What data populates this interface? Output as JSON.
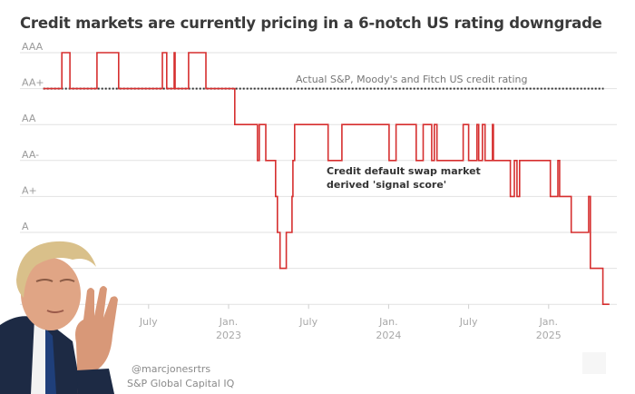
{
  "title": "Credit markets are currently pricing in a 6-notch US rating downgrade",
  "chart_data": {
    "type": "line",
    "step": true,
    "title": "Credit markets are currently pricing in a 6-notch US rating downgrade",
    "y_levels": [
      "AAA",
      "AA+",
      "AA",
      "AA-",
      "A+",
      "A",
      "",
      ""
    ],
    "y_tick_labels": [
      "AAA",
      "AA+",
      "AA",
      "AA-",
      "A+",
      "A"
    ],
    "x_ticks": [
      {
        "date": "2022-07-01",
        "label": "July",
        "sub": ""
      },
      {
        "date": "2023-01-01",
        "label": "Jan.",
        "sub": "2023"
      },
      {
        "date": "2023-07-01",
        "label": "July",
        "sub": ""
      },
      {
        "date": "2024-01-01",
        "label": "Jan.",
        "sub": "2024"
      },
      {
        "date": "2024-07-01",
        "label": "July",
        "sub": ""
      },
      {
        "date": "2025-01-01",
        "label": "Jan.",
        "sub": "2025"
      }
    ],
    "grid": true,
    "series": [
      {
        "name": "Credit default swap market derived 'signal score'",
        "color": "#d62f2f",
        "style": "solid",
        "steps": [
          [
            "2021-11-04",
            "AA+"
          ],
          [
            "2021-12-16",
            "AAA"
          ],
          [
            "2022-01-04",
            "AA+"
          ],
          [
            "2022-03-05",
            "AAA"
          ],
          [
            "2022-04-24",
            "AA+"
          ],
          [
            "2022-08-02",
            "AAA"
          ],
          [
            "2022-08-12",
            "AA+"
          ],
          [
            "2022-08-29",
            "AAA"
          ],
          [
            "2022-08-31",
            "AA+"
          ],
          [
            "2022-10-01",
            "AAA"
          ],
          [
            "2022-11-10",
            "AA+"
          ],
          [
            "2023-01-15",
            "AA"
          ],
          [
            "2023-03-06",
            "AA-"
          ],
          [
            "2023-03-10",
            "AA"
          ],
          [
            "2023-03-25",
            "AA-"
          ],
          [
            "2023-04-17",
            "A+"
          ],
          [
            "2023-04-21",
            "A"
          ],
          [
            "2023-04-27",
            "A-"
          ],
          [
            "2023-05-11",
            "A"
          ],
          [
            "2023-05-24",
            "A+"
          ],
          [
            "2023-05-26",
            "AA-"
          ],
          [
            "2023-05-30",
            "AA"
          ],
          [
            "2023-08-15",
            "AA-"
          ],
          [
            "2023-09-16",
            "AA"
          ],
          [
            "2024-01-02",
            "AA-"
          ],
          [
            "2024-01-18",
            "AA"
          ],
          [
            "2024-03-03",
            "AA-"
          ],
          [
            "2024-03-19",
            "AA"
          ],
          [
            "2024-04-08",
            "AA-"
          ],
          [
            "2024-04-14",
            "AA"
          ],
          [
            "2024-04-20",
            "AA-"
          ],
          [
            "2024-06-19",
            "AA"
          ],
          [
            "2024-07-01",
            "AA-"
          ],
          [
            "2024-07-20",
            "AA"
          ],
          [
            "2024-07-24",
            "AA-"
          ],
          [
            "2024-08-02",
            "AA"
          ],
          [
            "2024-08-08",
            "AA-"
          ],
          [
            "2024-08-25",
            "AA"
          ],
          [
            "2024-08-27",
            "AA-"
          ],
          [
            "2024-10-05",
            "A+"
          ],
          [
            "2024-10-14",
            "AA-"
          ],
          [
            "2024-10-20",
            "A+"
          ],
          [
            "2024-10-26",
            "AA-"
          ],
          [
            "2025-01-05",
            "A+"
          ],
          [
            "2025-01-22",
            "AA-"
          ],
          [
            "2025-01-26",
            "A+"
          ],
          [
            "2025-02-22",
            "A"
          ],
          [
            "2025-04-01",
            "A+"
          ],
          [
            "2025-04-05",
            "A-"
          ],
          [
            "2025-05-03",
            "BBB+"
          ],
          [
            "2025-05-18",
            "BBB+"
          ]
        ]
      },
      {
        "name": "Actual S&P, Moody's and Fitch US credit rating",
        "color": "#333333",
        "style": "dotted",
        "steps": [
          [
            "2021-11-04",
            "AA+"
          ],
          [
            "2025-05-05",
            "AA+"
          ]
        ]
      }
    ],
    "annotations": {
      "actual": "Actual S&P, Moody's and Fitch US credit rating",
      "cds_line1": "Credit default swap market",
      "cds_line2": "derived 'signal score'"
    }
  },
  "footer": {
    "byline": "@marcjonesrtrs",
    "source": "S&P Global Capital IQ"
  }
}
